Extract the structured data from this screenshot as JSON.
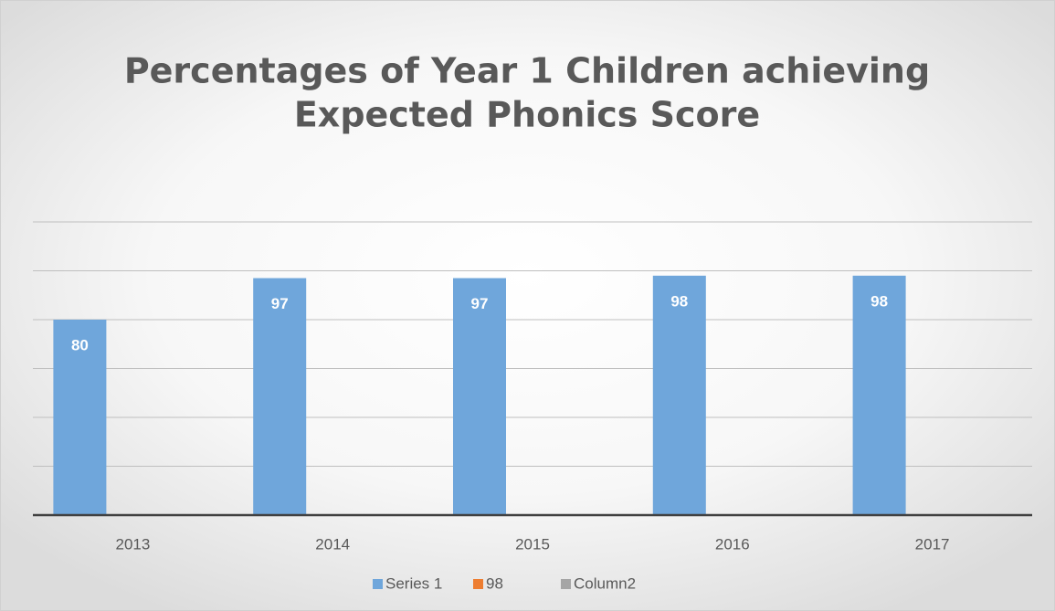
{
  "chart_data": {
    "type": "bar",
    "title": [
      "Percentages of Year 1 Children achieving",
      "Expected Phonics Score"
    ],
    "categories": [
      "2013",
      "2014",
      "2015",
      "2016",
      "2017"
    ],
    "series": [
      {
        "name": "Series 1",
        "color": "#6fa6db",
        "values": [
          80,
          97,
          97,
          98,
          98
        ]
      },
      {
        "name": "98",
        "color": "#ed7d31",
        "values": [
          null,
          null,
          null,
          null,
          null
        ]
      },
      {
        "name": "Column2",
        "color": "#a5a5a5",
        "values": [
          null,
          null,
          null,
          null,
          null
        ]
      }
    ],
    "ylim": [
      0,
      120
    ],
    "yticks": [
      0,
      20,
      40,
      60,
      80,
      100,
      120
    ],
    "grid": true,
    "legend": "bottom"
  }
}
